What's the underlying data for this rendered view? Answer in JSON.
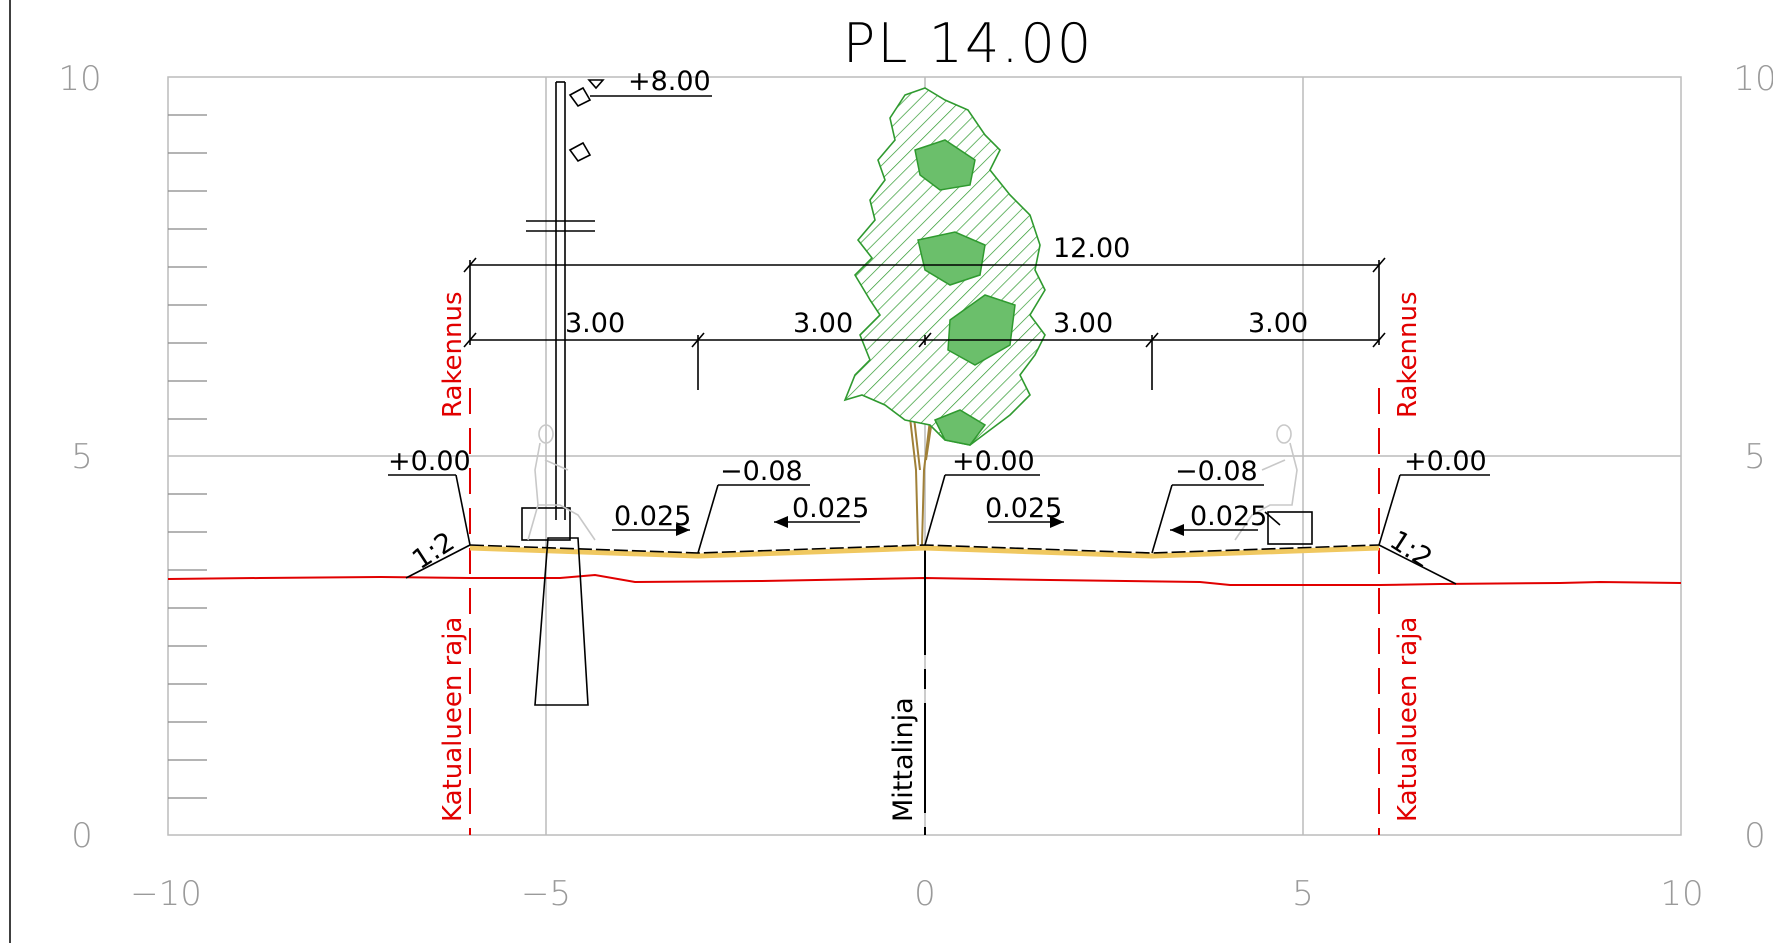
{
  "title": "PL 14.00",
  "axis": {
    "x_ticks": [
      "−10",
      "−5",
      "0",
      "5",
      "10"
    ],
    "y_ticks": [
      "0",
      "5",
      "10"
    ]
  },
  "dimensions": {
    "total_width": "12.00",
    "segments": [
      "3.00",
      "3.00",
      "3.00",
      "3.00"
    ]
  },
  "elevations": {
    "left_edge": "+0.00",
    "left_low": "−0.08",
    "center": "+0.00",
    "right_low": "−0.08",
    "right_edge": "+0.00",
    "lamp_top": "+8.00"
  },
  "slopes": {
    "s1": "0.025",
    "s2": "0.025",
    "s3": "0.025",
    "s4": "0.025",
    "left_embankment": "1:2",
    "right_embankment": "1:2"
  },
  "labels": {
    "building_left": "Rakennus",
    "building_right": "Rakennus",
    "street_boundary_left": "Katualueen raja",
    "street_boundary_right": "Katualueen raja",
    "survey_line": "Mittalinja"
  },
  "colors": {
    "boundary": "#e10000",
    "ground_line": "#e10000",
    "surface": "#f0c860",
    "tree": "#2f9a2f",
    "trunk": "#a08038",
    "grid": "#bcbcbc"
  }
}
